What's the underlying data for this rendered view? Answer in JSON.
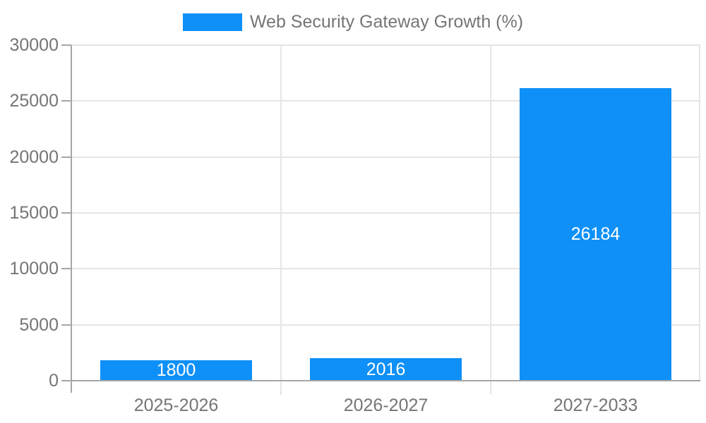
{
  "legend": {
    "label": "Web Security Gateway Growth (%)"
  },
  "chart_data": {
    "type": "bar",
    "title": "Web Security Gateway Growth (%)",
    "categories": [
      "2025-2026",
      "2026-2027",
      "2027-2033"
    ],
    "values": [
      1800,
      2016,
      26184
    ],
    "bar_labels": [
      "1800",
      "2016",
      "26184"
    ],
    "xlabel": "",
    "ylabel": "",
    "ylim": [
      0,
      30000
    ],
    "yticks": [
      0,
      5000,
      10000,
      15000,
      20000,
      25000,
      30000
    ],
    "ytick_labels": [
      "0",
      "5000",
      "10000",
      "15000",
      "20000",
      "25000",
      "30000"
    ],
    "grid": true,
    "legend_position": "top",
    "bar_label_position": "center-inside",
    "colors": {
      "bar": "#0e90f8",
      "bar_label": "#ffffff",
      "axis_line": "#a6a6a6",
      "gridline": "#e5e5e5",
      "label_text": "#757575",
      "background": "#ffffff"
    }
  }
}
